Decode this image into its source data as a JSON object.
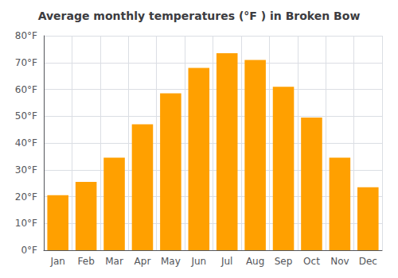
{
  "chart_data": {
    "type": "bar",
    "title": "Average monthly temperatures (°F ) in Broken Bow",
    "categories": [
      "Jan",
      "Feb",
      "Mar",
      "Apr",
      "May",
      "Jun",
      "Jul",
      "Aug",
      "Sep",
      "Oct",
      "Nov",
      "Dec"
    ],
    "values": [
      20.5,
      25.5,
      34.5,
      47,
      58.5,
      68,
      73.5,
      71,
      61,
      49.5,
      34.5,
      23.5
    ],
    "color": "#FFA000",
    "ylim": [
      0,
      80
    ],
    "yticks": [
      {
        "value": 0,
        "label": "0°F"
      },
      {
        "value": 10,
        "label": "10°F"
      },
      {
        "value": 20,
        "label": "20°F"
      },
      {
        "value": 30,
        "label": "30°F"
      },
      {
        "value": 40,
        "label": "40°F"
      },
      {
        "value": 50,
        "label": "50°F"
      },
      {
        "value": 60,
        "label": "60°F"
      },
      {
        "value": 70,
        "label": "70°F"
      },
      {
        "value": 80,
        "label": "80°F"
      }
    ],
    "grid": true
  }
}
